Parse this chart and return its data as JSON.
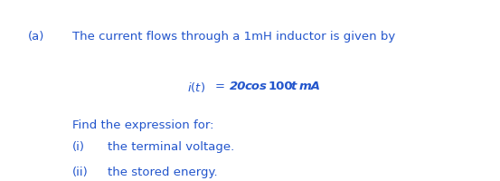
{
  "bg_color": "#ffffff",
  "text_color": "#2255cc",
  "label_a": "(a)",
  "line1": "The current flows through a 1mH inductor is given by",
  "find_line": "Find the expression for:",
  "sub_i_label": "(i)",
  "sub_i_text": "the terminal voltage.",
  "sub_ii_label": "(ii)",
  "sub_ii_text": "the stored energy.",
  "font_size_main": 9.5,
  "font_size_eq": 9.5
}
